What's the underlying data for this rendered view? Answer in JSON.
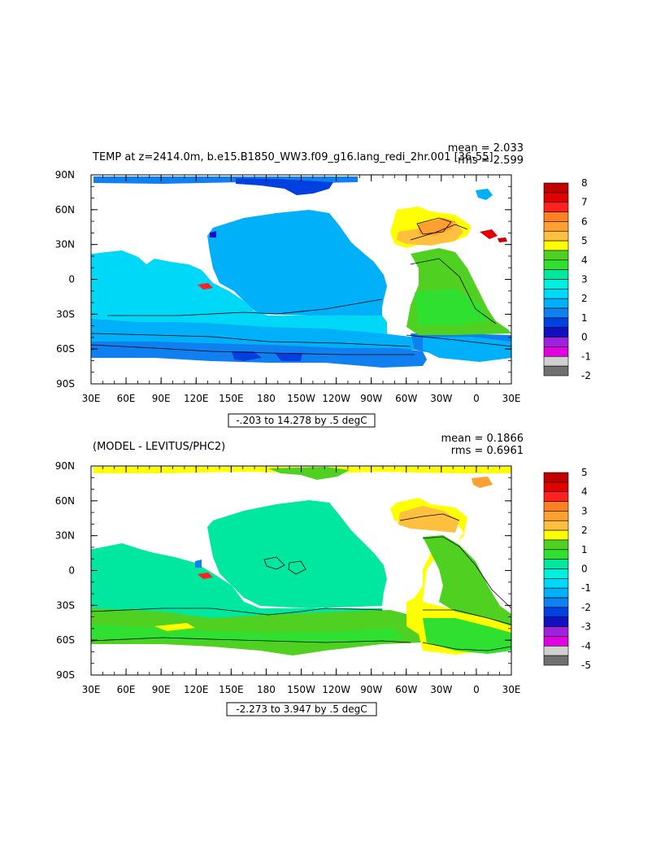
{
  "chart_data": [
    {
      "type": "heatmap",
      "title": "TEMP at z=2414.0m, b.e15.B1850_WW3.f09_g16.lang_redi_2hr.001 [36-55]",
      "stats": {
        "mean": "mean = 2.033",
        "rms": "rms = 2.599"
      },
      "x_ticks": [
        "30E",
        "60E",
        "90E",
        "120E",
        "150E",
        "180",
        "150W",
        "120W",
        "90W",
        "60W",
        "30W",
        "0",
        "30E"
      ],
      "y_ticks": [
        "90N",
        "60N",
        "30N",
        "0",
        "30S",
        "60S",
        "90S"
      ],
      "xlim": [
        30,
        390
      ],
      "ylim": [
        -90,
        90
      ],
      "range_label": "-.203 to 14.278 by .5 degC",
      "colorbar": {
        "labels": [
          "8",
          "7",
          "6",
          "5",
          "4",
          "3",
          "2",
          "1",
          "0",
          "-1",
          "-2"
        ],
        "colors": [
          "#c00000",
          "#e00000",
          "#ff2020",
          "#ff8020",
          "#ffa030",
          "#ffc040",
          "#ffff00",
          "#50d020",
          "#30e030",
          "#00e8a0",
          "#00f0e0",
          "#00d8f8",
          "#00b0f8",
          "#1080f0",
          "#0040e0",
          "#1010c0",
          "#a020e0",
          "#e000e0",
          "#d0d0d0",
          "#707070"
        ]
      }
    },
    {
      "type": "heatmap",
      "title": "(MODEL - LEVITUS/PHC2)",
      "stats": {
        "mean": "mean = 0.1866",
        "rms": "rms = 0.6961"
      },
      "x_ticks": [
        "30E",
        "60E",
        "90E",
        "120E",
        "150E",
        "180",
        "150W",
        "120W",
        "90W",
        "60W",
        "30W",
        "0",
        "30E"
      ],
      "y_ticks": [
        "90N",
        "60N",
        "30N",
        "0",
        "30S",
        "60S",
        "90S"
      ],
      "xlim": [
        30,
        390
      ],
      "ylim": [
        -90,
        90
      ],
      "range_label": "-2.273 to 3.947 by .5 degC",
      "colorbar": {
        "labels": [
          "5",
          "4",
          "3",
          "2",
          "1",
          "0",
          "-1",
          "-2",
          "-3",
          "-4",
          "-5"
        ],
        "colors": [
          "#c00000",
          "#e00000",
          "#ff2020",
          "#ff8020",
          "#ffa030",
          "#ffc040",
          "#ffff00",
          "#50d020",
          "#30e030",
          "#00e8a0",
          "#00f0e0",
          "#00d8f8",
          "#00b0f8",
          "#1080f0",
          "#0040e0",
          "#1010c0",
          "#a020e0",
          "#e000e0",
          "#d0d0d0",
          "#707070"
        ]
      }
    }
  ]
}
